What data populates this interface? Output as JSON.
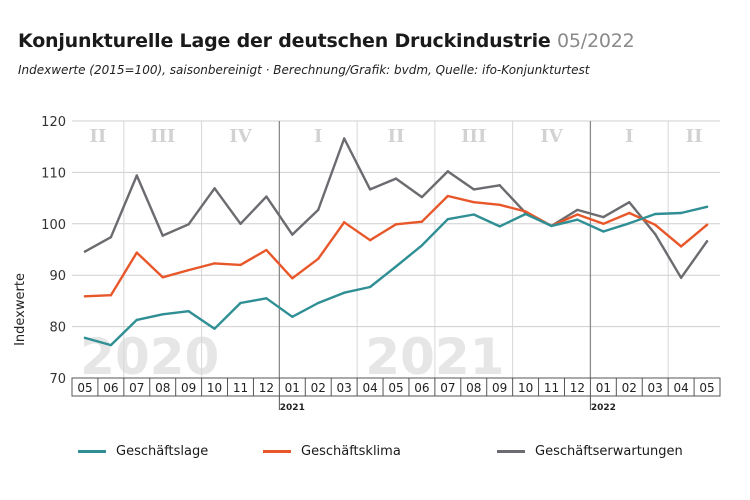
{
  "header": {
    "title": "Konjunkturelle Lage der deutschen Druckindustrie",
    "title_date": "05/2022",
    "subtitle": "Indexwerte (2015=100), saisonbereinigt · Berechnung/Grafik: bvdm, Quelle: ifo-Konjunkturtest"
  },
  "chart_data": {
    "type": "line",
    "ylabel": "Indexwerte",
    "ylim": [
      70,
      120
    ],
    "yticks": [
      70,
      80,
      90,
      100,
      110,
      120
    ],
    "grid": true,
    "categories": [
      "05",
      "06",
      "07",
      "08",
      "09",
      "10",
      "11",
      "12",
      "01",
      "02",
      "03",
      "04",
      "05",
      "06",
      "07",
      "08",
      "09",
      "10",
      "11",
      "12",
      "01",
      "02",
      "03",
      "04",
      "05"
    ],
    "year_labels": [
      {
        "label": "2021",
        "index": 8
      },
      {
        "label": "2022",
        "index": 20
      }
    ],
    "quarters": [
      {
        "label": "II",
        "start": 0,
        "end": 1
      },
      {
        "label": "III",
        "start": 2,
        "end": 4
      },
      {
        "label": "IV",
        "start": 5,
        "end": 7
      },
      {
        "label": "I",
        "start": 8,
        "end": 10
      },
      {
        "label": "II",
        "start": 11,
        "end": 13
      },
      {
        "label": "III",
        "start": 14,
        "end": 16
      },
      {
        "label": "IV",
        "start": 17,
        "end": 19
      },
      {
        "label": "I",
        "start": 20,
        "end": 22
      },
      {
        "label": "II",
        "start": 23,
        "end": 24
      }
    ],
    "watermarks": [
      {
        "label": "2020",
        "start": 0,
        "end": 5
      },
      {
        "label": "2021",
        "start": 11,
        "end": 16
      }
    ],
    "series": [
      {
        "name": "Geschäftslage",
        "color": "#2f8f94",
        "values": [
          77.8,
          76.4,
          81.3,
          82.4,
          83.0,
          79.6,
          84.6,
          85.5,
          81.9,
          84.6,
          86.6,
          87.7,
          91.7,
          95.8,
          100.9,
          101.8,
          99.5,
          101.9,
          99.6,
          100.8,
          98.5,
          100.1,
          101.9,
          102.1,
          103.3
        ]
      },
      {
        "name": "Geschäftsklima",
        "color": "#e8572a",
        "values": [
          85.9,
          86.1,
          94.4,
          89.6,
          91.0,
          92.3,
          92.0,
          94.9,
          89.4,
          93.2,
          100.3,
          96.8,
          99.9,
          100.4,
          105.4,
          104.2,
          103.7,
          102.4,
          99.6,
          101.8,
          100.0,
          102.1,
          99.8,
          95.6,
          99.8
        ]
      },
      {
        "name": "Geschäftserwartungen",
        "color": "#6b6b70",
        "values": [
          94.6,
          97.4,
          109.4,
          97.7,
          99.9,
          106.9,
          100.0,
          105.3,
          97.9,
          102.7,
          116.6,
          106.7,
          108.8,
          105.2,
          110.2,
          106.7,
          107.5,
          102.1,
          99.6,
          102.7,
          101.3,
          104.2,
          98.0,
          89.5,
          96.6
        ]
      }
    ]
  }
}
